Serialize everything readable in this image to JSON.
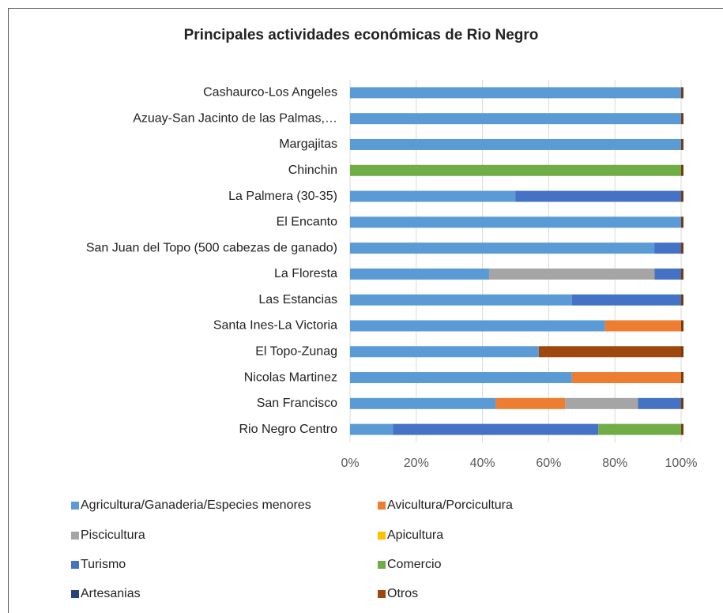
{
  "chart_data": {
    "type": "bar",
    "orientation": "horizontal",
    "stacked": "percent",
    "title": "Principales actividades económicas de Rio Negro",
    "categories": [
      "Cashaurco-Los Angeles",
      "Azuay-San Jacinto de las Palmas,…",
      "Margajitas",
      "Chinchin",
      "La Palmera (30-35)",
      "El Encanto",
      "San Juan del Topo (500 cabezas de ganado)",
      "La Floresta",
      "Las Estancias",
      "Santa Ines-La Victoria",
      "El Topo-Zunag",
      "Nicolas Martinez",
      "San Francisco",
      "Rio Negro Centro"
    ],
    "series": [
      {
        "name": "Agricultura/Ganaderia/Especies menores",
        "color": "#5b9bd5",
        "values": [
          100,
          100,
          100,
          0,
          50,
          100,
          92,
          42,
          67,
          77,
          57,
          67,
          44,
          13
        ]
      },
      {
        "name": "Avicultura/Porcicultura",
        "color": "#ed7d31",
        "values": [
          0,
          0,
          0,
          0,
          0,
          0,
          0,
          0,
          0,
          23,
          0,
          33,
          21,
          0
        ]
      },
      {
        "name": "Piscicultura",
        "color": "#a5a5a5",
        "values": [
          0,
          0,
          0,
          0,
          0,
          0,
          0,
          50,
          0,
          0,
          0,
          0,
          22,
          0
        ]
      },
      {
        "name": "Apicultura",
        "color": "#ffc000",
        "values": [
          0,
          0,
          0,
          0,
          0,
          0,
          0,
          0,
          0,
          0,
          0,
          0,
          0,
          0
        ]
      },
      {
        "name": "Turismo",
        "color": "#4472c4",
        "values": [
          0,
          0,
          0,
          0,
          50,
          0,
          8,
          8,
          33,
          0,
          0,
          0,
          13,
          62
        ]
      },
      {
        "name": "Comercio",
        "color": "#70ad47",
        "values": [
          0,
          0,
          0,
          100,
          0,
          0,
          0,
          0,
          0,
          0,
          0,
          0,
          0,
          25
        ]
      },
      {
        "name": "Artesanias",
        "color": "#264478",
        "values": [
          0,
          0,
          0,
          0,
          0,
          0,
          0,
          0,
          0,
          0,
          0,
          0,
          0,
          0
        ]
      },
      {
        "name": "Otros",
        "color": "#9e480e",
        "values": [
          0,
          0,
          0,
          0,
          0,
          0,
          0,
          0,
          0,
          0,
          43,
          0,
          0,
          0
        ]
      }
    ],
    "xlim": [
      0,
      100
    ],
    "xticks": [
      {
        "value": 0,
        "label": "0%"
      },
      {
        "value": 20,
        "label": "20%"
      },
      {
        "value": 40,
        "label": "40%"
      },
      {
        "value": 60,
        "label": "60%"
      },
      {
        "value": 80,
        "label": "80%"
      },
      {
        "value": 100,
        "label": "100%"
      }
    ],
    "grid": true,
    "legend": "bottom"
  }
}
